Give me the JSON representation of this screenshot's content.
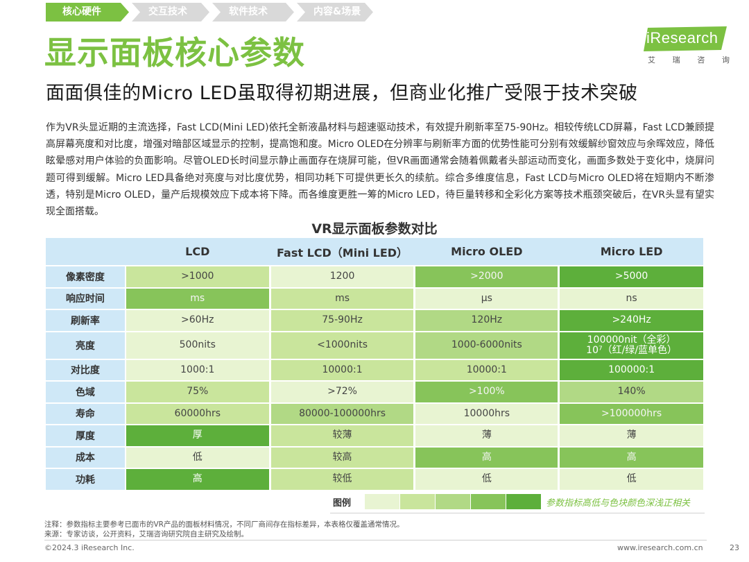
{
  "nav": {
    "items": [
      {
        "label": "核心硬件"
      },
      {
        "label": "交互技术"
      },
      {
        "label": "软件技术"
      },
      {
        "label": "内容&场景"
      }
    ]
  },
  "header": {
    "title": "显示面板核心参数",
    "subtitle": "面面俱佳的Micro LED虽取得初期进展，但商业化推广受限于技术突破"
  },
  "logo": {
    "name": "iResearch",
    "sub": [
      "艾",
      "瑞",
      "咨",
      "询"
    ]
  },
  "paragraph": "作为VR头显近期的主流选择，Fast LCD(Mini LED)依托全新液晶材料与超速驱动技术，有效提升刷新率至75-90Hz。相较传统LCD屏幕，Fast LCD兼顾提高屏幕亮度和对比度，增强对暗部区域显示的控制，提高饱和度。Micro OLED在分辨率与刷新率方面的优势性能可分别有效缓解纱窗效应与余晖效应，降低眩晕感对用户体验的负面影响。尽管OLED长时间显示静止画面存在烧屏可能，但VR画面通常会随着佩戴者头部运动而变化，画面多数处于变化中，烧屏问题可得到缓解。Micro LED具备绝对亮度与对比度优势，相同功耗下可提供更长久的续航。综合多维度信息，Fast LCD与Micro OLED将在短期内不断渗透，特别是Micro OLED，量产后规模效应下成本将下降。而各维度更胜一筹的Micro LED，待巨量转移和全彩化方案等技术瓶颈突破后，在VR头显有望实现全面搭载。",
  "table": {
    "title": "VR显示面板参数对比",
    "headers": [
      "LCD",
      "Fast LCD（Mini LED）",
      "Micro OLED",
      "Micro LED"
    ],
    "rows": [
      {
        "label": "像素密度",
        "cells": [
          ">1000",
          "1200",
          ">2000",
          ">5000"
        ],
        "levels": [
          2,
          1,
          4,
          5
        ]
      },
      {
        "label": "响应时间",
        "cells": [
          "ms",
          "ms",
          "μs",
          "ns"
        ],
        "levels": [
          4,
          2,
          1,
          1
        ]
      },
      {
        "label": "刷新率",
        "cells": [
          ">60Hz",
          "75-90Hz",
          "120Hz",
          ">240Hz"
        ],
        "levels": [
          1,
          2,
          3,
          5
        ]
      },
      {
        "label": "亮度",
        "cells": [
          "500nits",
          "<1000nits",
          "1000-6000nits",
          "100000nit（全彩）"
        ],
        "cell4_line2": "10⁷（红/绿/蓝单色）",
        "levels": [
          1,
          2,
          3,
          5
        ]
      },
      {
        "label": "对比度",
        "cells": [
          "1000:1",
          "10000:1",
          "10000:1",
          "100000:1"
        ],
        "levels": [
          1,
          2,
          2,
          5
        ]
      },
      {
        "label": "色域",
        "cells": [
          "75%",
          ">72%",
          ">100%",
          "140%"
        ],
        "levels": [
          2,
          1,
          4,
          3
        ]
      },
      {
        "label": "寿命",
        "cells": [
          "60000hrs",
          "80000-100000hrs",
          "10000hrs",
          ">100000hrs"
        ],
        "levels": [
          2,
          3,
          1,
          4
        ]
      },
      {
        "label": "厚度",
        "cells": [
          "厚",
          "较薄",
          "薄",
          "薄"
        ],
        "levels": [
          5,
          2,
          1,
          1
        ]
      },
      {
        "label": "成本",
        "cells": [
          "低",
          "较高",
          "高",
          "高"
        ],
        "levels": [
          1,
          2,
          4,
          4
        ]
      },
      {
        "label": "功耗",
        "cells": [
          "高",
          "较低",
          "低",
          "低"
        ],
        "levels": [
          5,
          2,
          1,
          1
        ]
      }
    ]
  },
  "legend": {
    "label": "图例",
    "note": "参数指标高低与色块颜色深浅正相关"
  },
  "colors": {
    "brand_green": "#7cc142",
    "header_blue": "#cfe8f7",
    "levels": [
      "#e8f4d2",
      "#c9e59c",
      "#b1d985",
      "#87c45a",
      "#5daf3b"
    ]
  },
  "footer": {
    "note": "注释：参数指标主要参考已面市的VR产品的面板材料情况，不同厂商间存在指标差异，本表格仅覆盖通常情况。",
    "source": "来源：专家访谈，公开资料，艾瑞咨询研究院自主研究及绘制。",
    "copyright": "©2024.3 iResearch Inc.",
    "website": "www.iresearch.com.cn",
    "page": "23"
  }
}
